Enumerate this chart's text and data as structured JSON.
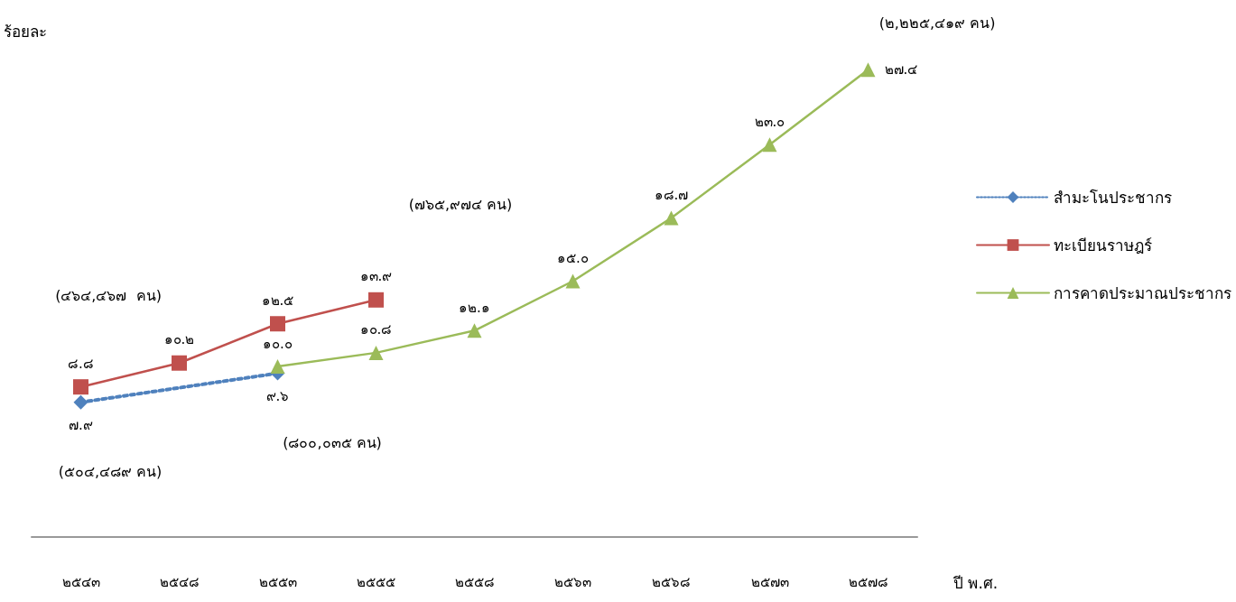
{
  "chart_data": {
    "type": "line",
    "ylabel": "ร้อยละ",
    "xlabel": "ปี พ.ศ.",
    "categories": [
      "๒๕๔๓",
      "๒๕๔๘",
      "๒๕๕๓",
      "๒๕๕๕",
      "๒๕๕๘",
      "๒๕๖๓",
      "๒๕๖๘",
      "๒๕๗๓",
      "๒๕๗๘"
    ],
    "series": [
      {
        "name": "สำมะโนประชากร",
        "color": "#4f81bd",
        "marker": "diamond",
        "line_style": "dotted",
        "values": [
          7.9,
          null,
          9.6,
          null,
          null,
          null,
          null,
          null,
          null
        ],
        "value_labels": [
          "๗.๙",
          null,
          "๙.๖",
          null,
          null,
          null,
          null,
          null,
          null
        ]
      },
      {
        "name": "ทะเบียนราษฎร์",
        "color": "#c0504d",
        "marker": "square",
        "line_style": "solid",
        "values": [
          8.8,
          10.2,
          12.5,
          13.9,
          null,
          null,
          null,
          null,
          null
        ],
        "value_labels": [
          "๘.๘",
          "๑๐.๒",
          "๑๒.๕",
          "๑๓.๙",
          null,
          null,
          null,
          null,
          null
        ]
      },
      {
        "name": "การคาดประมาณประชากร",
        "color": "#9bbb59",
        "marker": "triangle",
        "line_style": "solid",
        "values": [
          null,
          null,
          10.0,
          10.8,
          12.1,
          15.0,
          18.7,
          23.0,
          27.4
        ],
        "value_labels": [
          null,
          null,
          "๑๐.๐",
          "๑๐.๘",
          "๑๒.๑",
          "๑๕.๐",
          "๑๘.๗",
          "๒๓.๐",
          "๒๗.๔"
        ]
      }
    ],
    "annotations": [
      "(๕๐๔,๔๘๙ คน)",
      "(๔๖๔,๔๖๗  คน)",
      "(๘๐๐,๐๓๕ คน)",
      "(๗๖๕,๙๗๔ คน)",
      "(๒,๒๒๕,๔๑๙ คน)"
    ],
    "legend": "right",
    "grid": false
  }
}
